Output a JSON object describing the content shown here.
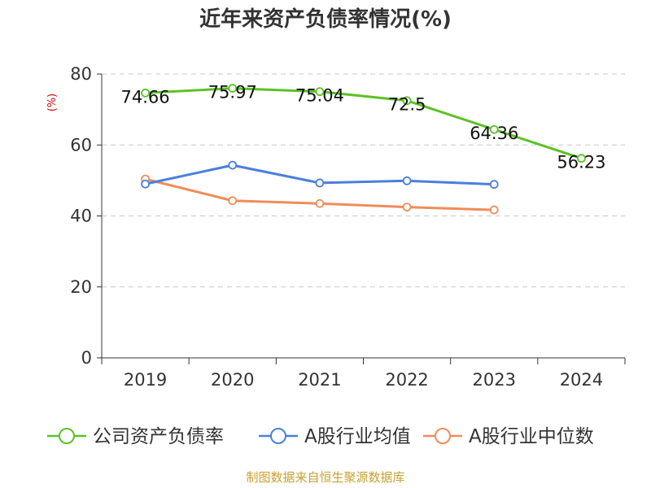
{
  "chart_data": {
    "type": "line",
    "title": "近年来资产负债率情况(%)",
    "ylabel": "(%)",
    "ylim": [
      0,
      80
    ],
    "yticks": [
      0,
      20,
      40,
      60,
      80
    ],
    "categories": [
      "2019",
      "2020",
      "2021",
      "2022",
      "2023",
      "2024"
    ],
    "grid": true,
    "legend_position": "bottom",
    "series": [
      {
        "name": "公司资产负债率",
        "color": "#5bc225",
        "values": [
          74.66,
          75.97,
          75.04,
          72.5,
          64.36,
          56.23
        ],
        "labels": [
          "74.66",
          "75.97",
          "75.04",
          "72.5",
          "64.36",
          "56.23"
        ]
      },
      {
        "name": "A股行业均值",
        "color": "#4a7fdc",
        "values": [
          49.0,
          54.3,
          49.3,
          49.9,
          48.9,
          null
        ]
      },
      {
        "name": "A股行业中位数",
        "color": "#f08c5a",
        "values": [
          50.4,
          44.3,
          43.5,
          42.5,
          41.7,
          null
        ]
      }
    ]
  },
  "source": "制图数据来自恒生聚源数据库"
}
